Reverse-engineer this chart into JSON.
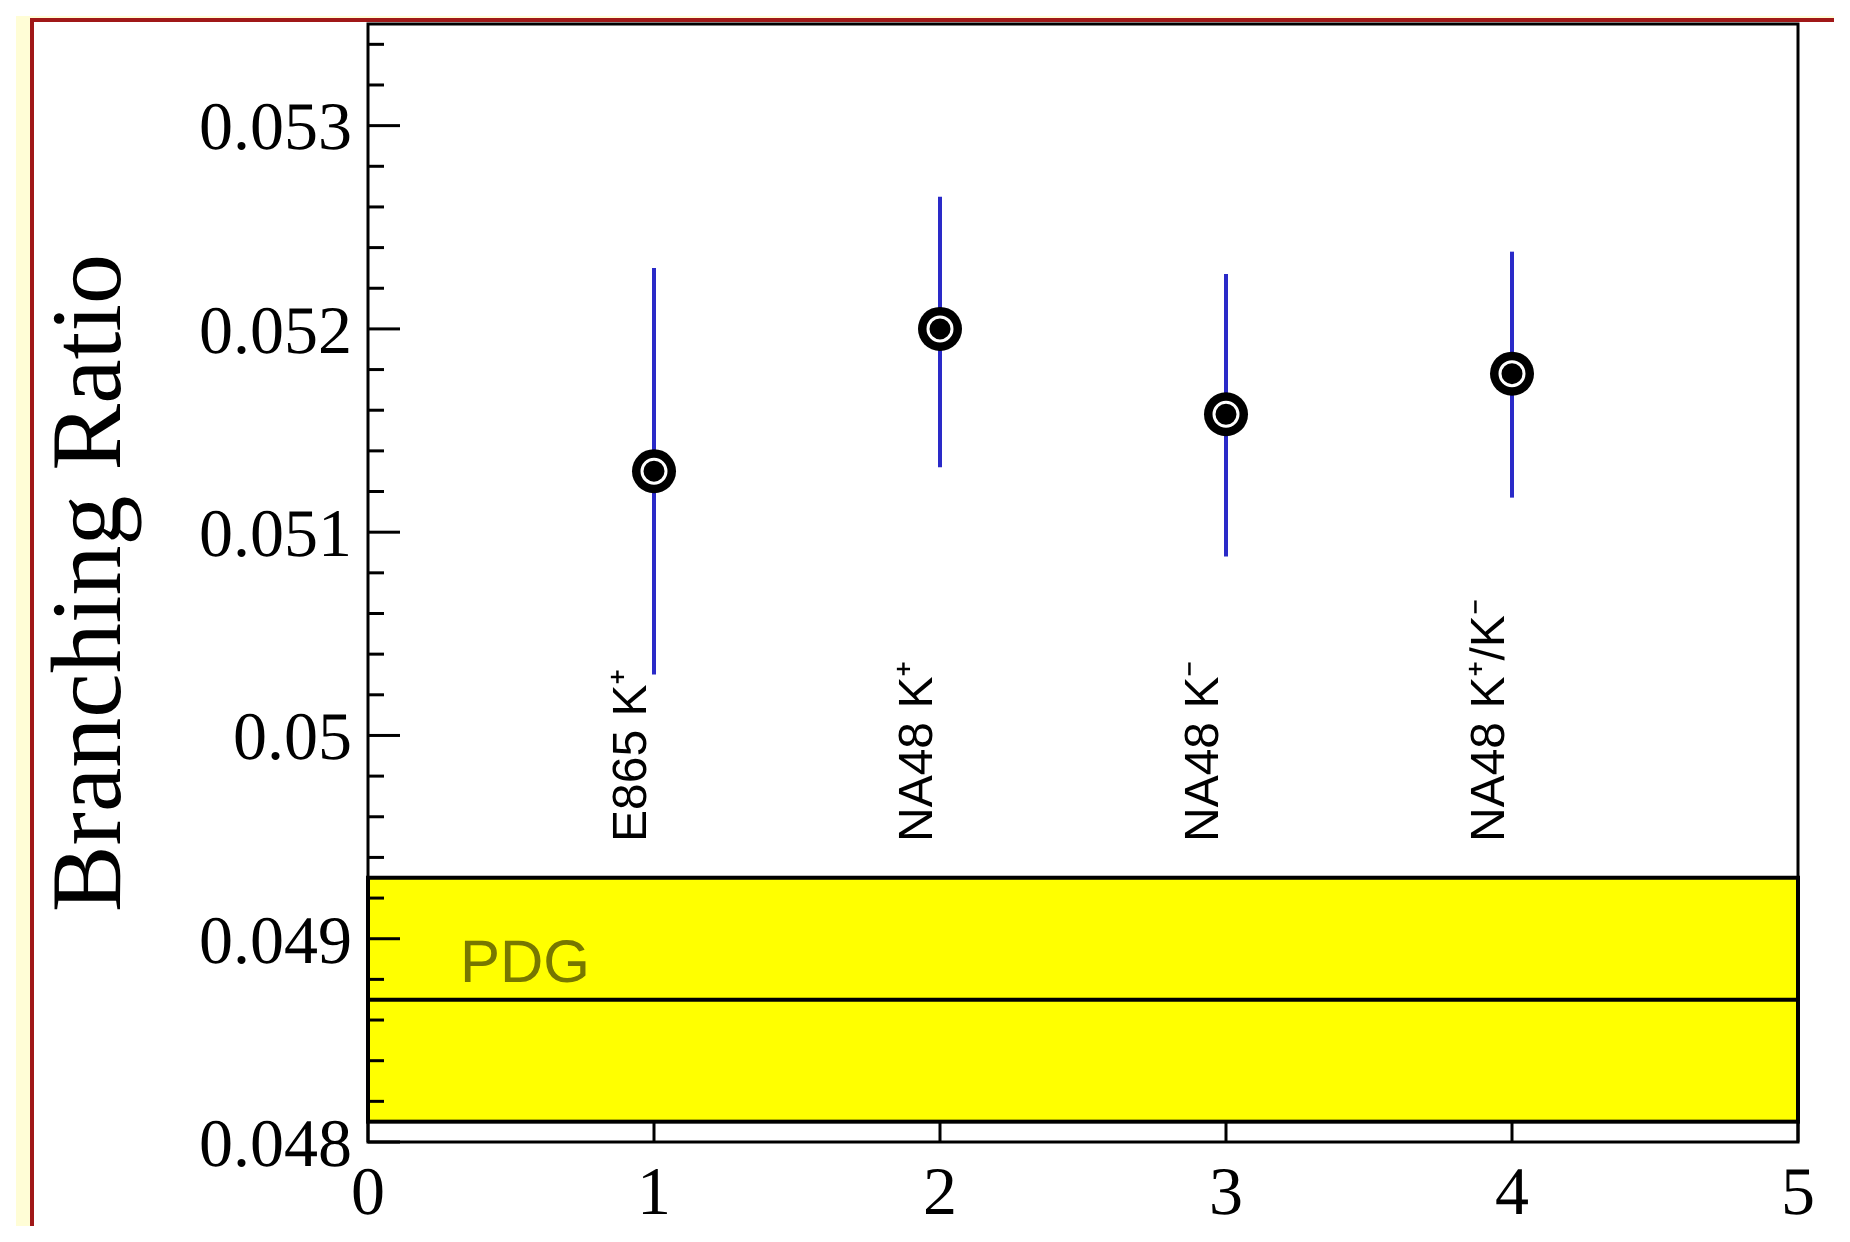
{
  "chart_data": {
    "type": "scatter",
    "ylabel": "Branching Ratio",
    "x": [
      1,
      2,
      3,
      4
    ],
    "series": [
      {
        "color": "#000000",
        "values": [
          0.0513,
          0.052,
          0.05158,
          0.05178
        ],
        "errors": [
          0.001,
          [
            0.05132,
            0.05265
          ],
          [
            0.05088,
            0.05227
          ],
          [
            0.05117,
            0.05238
          ]
        ]
      }
    ],
    "xlim": [
      0,
      5
    ],
    "xticks": [
      0,
      1,
      2,
      3,
      4,
      5
    ],
    "ylim": [
      0.048,
      0.0535
    ],
    "yticks": [
      0.048,
      {
        "value": 0.0482,
        "label": null
      },
      {
        "value": 0.0484,
        "label": null
      },
      {
        "value": 0.0486,
        "label": null
      },
      {
        "value": 0.0488,
        "label": null
      },
      0.049,
      {
        "value": 0.0492,
        "label": null
      },
      {
        "value": 0.0494,
        "label": null
      },
      {
        "value": 0.0496,
        "label": null
      },
      {
        "value": 0.0498,
        "label": null
      },
      {
        "value": 0.05,
        "label": "0.05"
      },
      {
        "value": 0.0502,
        "label": null
      },
      {
        "value": 0.0504,
        "label": null
      },
      {
        "value": 0.0506,
        "label": null
      },
      {
        "value": 0.0508,
        "label": null
      },
      0.051,
      {
        "value": 0.0512,
        "label": null
      },
      {
        "value": 0.0514,
        "label": null
      },
      {
        "value": 0.0516,
        "label": null
      },
      {
        "value": 0.0518,
        "label": null
      },
      0.052,
      {
        "value": 0.0522,
        "label": null
      },
      {
        "value": 0.0524,
        "label": null
      },
      {
        "value": 0.0526,
        "label": null
      },
      {
        "value": 0.0528,
        "label": null
      },
      0.053,
      {
        "value": 0.0532,
        "label": null
      },
      {
        "value": 0.0534,
        "label": null
      }
    ],
    "annotations": [
      "E865 K⁺",
      "NA48 K⁺",
      "NA48 K⁻",
      "NA48 K⁺/K⁻"
    ],
    "bands": [
      {
        "axis": "y",
        "from": 0.0481,
        "to": 0.0493,
        "label": "PDG",
        "color": "#ffff00"
      }
    ],
    "ref_lines": [
      {
        "axis": "y",
        "value": 0.0487,
        "color": "#000000"
      }
    ],
    "marker": "circle",
    "grid": false
  }
}
